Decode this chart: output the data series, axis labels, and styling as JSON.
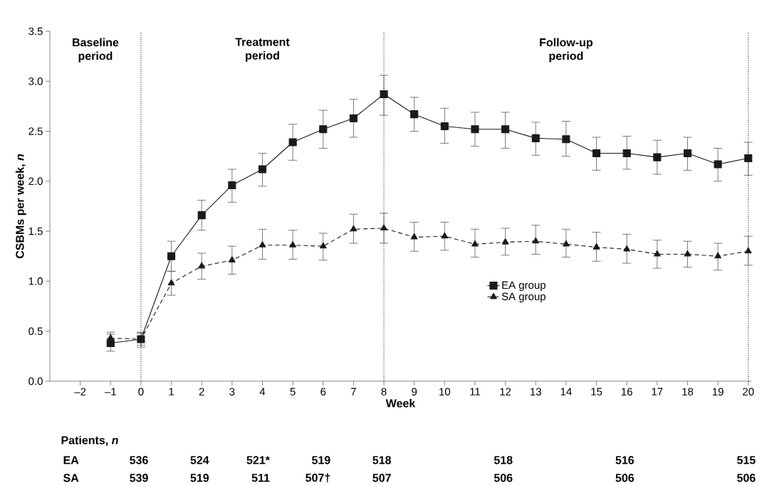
{
  "chart_data": {
    "type": "line",
    "xlabel": "Week",
    "ylabel": "CSBMs per week, *n*",
    "x": [
      -1,
      0,
      1,
      2,
      3,
      4,
      5,
      6,
      7,
      8,
      9,
      10,
      11,
      12,
      13,
      14,
      15,
      16,
      17,
      18,
      19,
      20
    ],
    "series": [
      {
        "name": "EA group",
        "color": "#1a1a1a",
        "marker": "square",
        "line_style": "solid",
        "values": [
          0.38,
          0.42,
          1.25,
          1.66,
          1.96,
          2.12,
          2.39,
          2.52,
          2.63,
          2.87,
          2.67,
          2.55,
          2.52,
          2.52,
          2.43,
          2.42,
          2.28,
          2.28,
          2.24,
          2.28,
          2.17,
          2.23
        ],
        "errors": [
          [
            0.3,
            0.47
          ],
          [
            0.34,
            0.49
          ],
          [
            1.1,
            1.4
          ],
          [
            1.51,
            1.81
          ],
          [
            1.79,
            2.12
          ],
          [
            1.95,
            2.28
          ],
          [
            2.21,
            2.57
          ],
          [
            2.33,
            2.71
          ],
          [
            2.44,
            2.82
          ],
          [
            2.66,
            3.06
          ],
          [
            2.5,
            2.84
          ],
          [
            2.38,
            2.73
          ],
          [
            2.35,
            2.69
          ],
          [
            2.33,
            2.69
          ],
          [
            2.26,
            2.59
          ],
          [
            2.25,
            2.6
          ],
          [
            2.11,
            2.44
          ],
          [
            2.12,
            2.45
          ],
          [
            2.07,
            2.41
          ],
          [
            2.11,
            2.44
          ],
          [
            2.0,
            2.33
          ],
          [
            2.06,
            2.39
          ]
        ]
      },
      {
        "name": "SA group",
        "color": "#1a1a1a",
        "marker": "triangle",
        "line_style": "dashed",
        "values": [
          0.43,
          0.42,
          0.98,
          1.15,
          1.21,
          1.36,
          1.36,
          1.35,
          1.52,
          1.53,
          1.44,
          1.45,
          1.37,
          1.39,
          1.4,
          1.37,
          1.34,
          1.32,
          1.27,
          1.27,
          1.25,
          1.3
        ],
        "errors": [
          [
            0.43,
            0.49
          ],
          [
            0.36,
            0.48
          ],
          [
            0.86,
            1.1
          ],
          [
            1.02,
            1.28
          ],
          [
            1.07,
            1.35
          ],
          [
            1.22,
            1.52
          ],
          [
            1.22,
            1.51
          ],
          [
            1.21,
            1.48
          ],
          [
            1.38,
            1.67
          ],
          [
            1.38,
            1.68
          ],
          [
            1.3,
            1.59
          ],
          [
            1.31,
            1.59
          ],
          [
            1.24,
            1.52
          ],
          [
            1.26,
            1.53
          ],
          [
            1.27,
            1.56
          ],
          [
            1.24,
            1.52
          ],
          [
            1.2,
            1.49
          ],
          [
            1.18,
            1.47
          ],
          [
            1.13,
            1.41
          ],
          [
            1.14,
            1.4
          ],
          [
            1.11,
            1.38
          ],
          [
            1.16,
            1.45
          ]
        ]
      }
    ],
    "xlim": [
      -3,
      20.1
    ],
    "xticks": [
      {
        "value": -2,
        "label": "–2"
      },
      {
        "value": -1,
        "label": "–1"
      },
      0,
      1,
      2,
      3,
      4,
      5,
      6,
      7,
      8,
      9,
      10,
      11,
      12,
      13,
      14,
      15,
      16,
      17,
      18,
      19,
      20
    ],
    "ylim": [
      0,
      3.5
    ],
    "yticks": [
      {
        "value": 0,
        "label": "0.0"
      },
      0.5,
      {
        "value": 1,
        "label": "1.0"
      },
      1.5,
      {
        "value": 2,
        "label": "2.0"
      },
      2.5,
      {
        "value": 3,
        "label": "3.0"
      },
      3.5
    ],
    "ref_lines": [
      {
        "axis": "x",
        "value": 0,
        "line_style": "dotted"
      },
      {
        "axis": "x",
        "value": 8,
        "line_style": "dotted"
      },
      {
        "axis": "x",
        "value": 20,
        "line_style": "dotted"
      }
    ],
    "grid": false,
    "legend": "right",
    "annotations": [
      "Baseline period",
      "Treatment period",
      "Follow-up period",
      "Patients, *n*",
      "EA",
      "SA",
      "536",
      "524",
      "521*",
      "519",
      "518",
      "518",
      "516",
      "515",
      "539",
      "519",
      "511",
      "507†",
      "507",
      "506",
      "506",
      "506"
    ]
  }
}
